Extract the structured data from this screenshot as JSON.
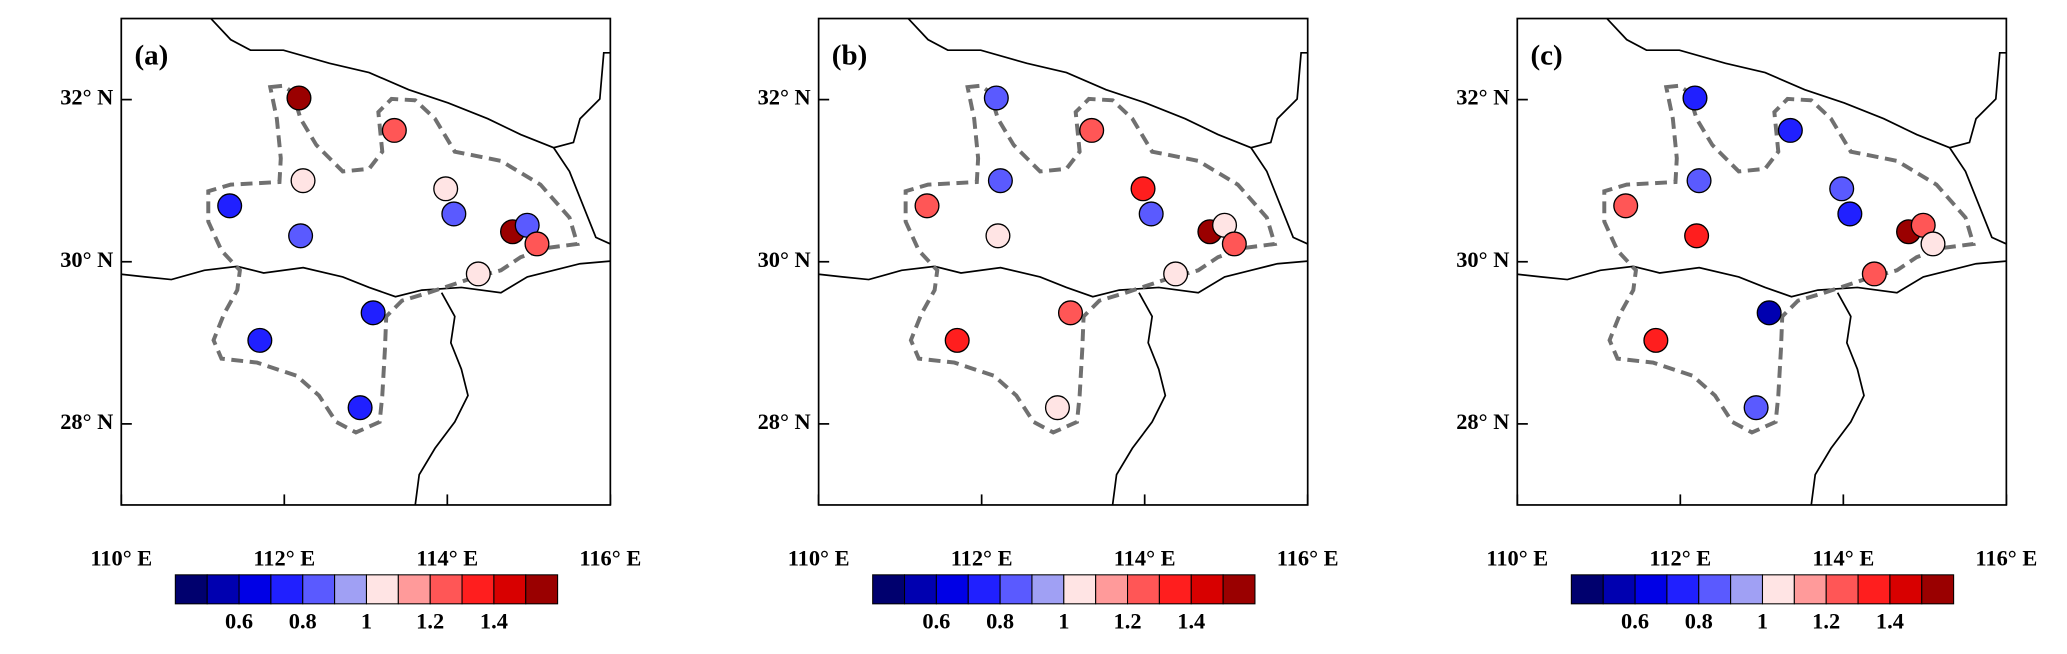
{
  "chart_data": [
    {
      "type": "scatter",
      "title": "(a)",
      "x": [
        112.18,
        113.35,
        112.23,
        111.33,
        112.2,
        113.98,
        114.08,
        114.8,
        114.98,
        115.1,
        114.38,
        113.09,
        111.7,
        112.93
      ],
      "y": [
        32.02,
        31.62,
        31.0,
        30.69,
        30.32,
        30.9,
        30.59,
        30.37,
        30.45,
        30.22,
        29.85,
        29.37,
        29.03,
        28.2
      ],
      "values": [
        1.55,
        1.25,
        1.05,
        0.75,
        0.85,
        1.05,
        0.85,
        1.55,
        0.85,
        1.2,
        1.05,
        0.75,
        0.75,
        0.75
      ],
      "xlim": [
        110,
        116
      ],
      "ylim": [
        27,
        33
      ],
      "xticks": [
        {
          "value": 110,
          "label": "110° E"
        },
        {
          "value": 112,
          "label": "112° E"
        },
        {
          "value": 114,
          "label": "114° E"
        },
        {
          "value": 116,
          "label": "116° E"
        }
      ],
      "yticks": [
        {
          "value": 28,
          "label": "28° N"
        },
        {
          "value": 30,
          "label": "30° N"
        },
        {
          "value": 32,
          "label": "32° N"
        }
      ],
      "colorbar": {
        "levels": [
          0.5,
          0.6,
          0.7,
          0.8,
          0.9,
          1.0,
          1.1,
          1.2,
          1.3,
          1.4,
          1.5
        ],
        "colors": [
          "#00006e",
          "#0000b0",
          "#0000e6",
          "#2020ff",
          "#5a5aff",
          "#a0a0f4",
          "#ffe4e4",
          "#ff9a9a",
          "#ff5656",
          "#ff1e1e",
          "#d80000",
          "#9a0000"
        ],
        "ticks": [
          0.6,
          0.8,
          1,
          1.2,
          1.4
        ]
      }
    },
    {
      "type": "scatter",
      "title": "(b)",
      "x": [
        112.18,
        113.35,
        112.23,
        111.33,
        112.2,
        113.98,
        114.08,
        114.8,
        114.98,
        115.1,
        114.38,
        113.09,
        111.7,
        112.93
      ],
      "y": [
        32.02,
        31.62,
        31.0,
        30.69,
        30.32,
        30.9,
        30.59,
        30.37,
        30.45,
        30.22,
        29.85,
        29.37,
        29.03,
        28.2
      ],
      "values": [
        0.85,
        1.25,
        0.85,
        1.25,
        1.05,
        1.35,
        0.85,
        1.55,
        1.05,
        1.25,
        1.05,
        1.25,
        1.35,
        1.05
      ],
      "xlim": [
        110,
        116
      ],
      "ylim": [
        27,
        33
      ],
      "xticks": [
        {
          "value": 110,
          "label": "110° E"
        },
        {
          "value": 112,
          "label": "112° E"
        },
        {
          "value": 114,
          "label": "114° E"
        },
        {
          "value": 116,
          "label": "116° E"
        }
      ],
      "yticks": [
        {
          "value": 28,
          "label": "28° N"
        },
        {
          "value": 30,
          "label": "30° N"
        },
        {
          "value": 32,
          "label": "32° N"
        }
      ],
      "colorbar": {
        "levels": [
          0.5,
          0.6,
          0.7,
          0.8,
          0.9,
          1.0,
          1.1,
          1.2,
          1.3,
          1.4,
          1.5
        ],
        "colors": [
          "#00006e",
          "#0000b0",
          "#0000e6",
          "#2020ff",
          "#5a5aff",
          "#a0a0f4",
          "#ffe4e4",
          "#ff9a9a",
          "#ff5656",
          "#ff1e1e",
          "#d80000",
          "#9a0000"
        ],
        "ticks": [
          0.6,
          0.8,
          1,
          1.2,
          1.4
        ]
      }
    },
    {
      "type": "scatter",
      "title": "(c)",
      "x": [
        112.18,
        113.35,
        112.23,
        111.33,
        112.2,
        113.98,
        114.08,
        114.8,
        114.98,
        115.1,
        114.38,
        113.09,
        111.7,
        112.93
      ],
      "y": [
        32.02,
        31.62,
        31.0,
        30.69,
        30.32,
        30.9,
        30.59,
        30.37,
        30.45,
        30.22,
        29.85,
        29.37,
        29.03,
        28.2
      ],
      "values": [
        0.75,
        0.75,
        0.85,
        1.25,
        1.35,
        0.85,
        0.75,
        1.55,
        1.2,
        1.05,
        1.25,
        0.55,
        1.35,
        0.85
      ],
      "xlim": [
        110,
        116
      ],
      "ylim": [
        27,
        33
      ],
      "xticks": [
        {
          "value": 110,
          "label": "110° E"
        },
        {
          "value": 112,
          "label": "112° E"
        },
        {
          "value": 114,
          "label": "114° E"
        },
        {
          "value": 116,
          "label": "116° E"
        }
      ],
      "yticks": [
        {
          "value": 28,
          "label": "28° N"
        },
        {
          "value": 30,
          "label": "30° N"
        },
        {
          "value": 32,
          "label": "32° N"
        }
      ],
      "colorbar": {
        "levels": [
          0.5,
          0.6,
          0.7,
          0.8,
          0.9,
          1.0,
          1.1,
          1.2,
          1.3,
          1.4,
          1.5
        ],
        "colors": [
          "#00006e",
          "#0000b0",
          "#0000e6",
          "#2020ff",
          "#5a5aff",
          "#a0a0f4",
          "#ffe4e4",
          "#ff9a9a",
          "#ff5656",
          "#ff1e1e",
          "#d80000",
          "#9a0000"
        ],
        "ticks": [
          0.6,
          0.8,
          1,
          1.2,
          1.4
        ]
      }
    }
  ]
}
